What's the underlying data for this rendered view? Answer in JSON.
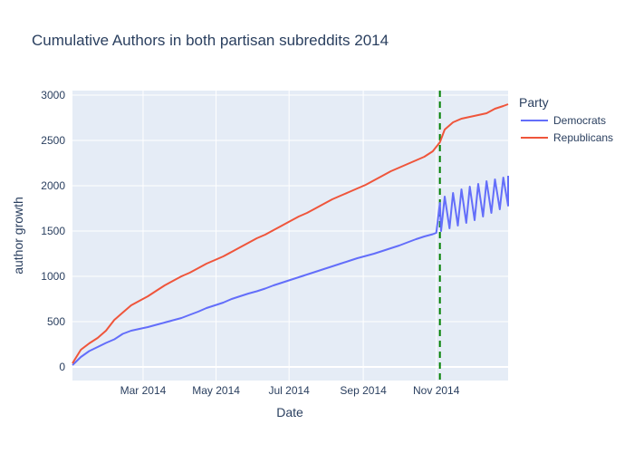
{
  "chart_data": {
    "type": "line",
    "title": "Cumulative Authors in both partisan subreddits 2014",
    "xlabel": "Date",
    "ylabel": "author growth",
    "xlim": [
      "2014-01-01",
      "2014-12-31"
    ],
    "ylim": [
      -150,
      3050
    ],
    "x_ticks": [
      {
        "date": "2014-03-01",
        "label": "Mar 2014"
      },
      {
        "date": "2014-05-01",
        "label": "May 2014"
      },
      {
        "date": "2014-07-01",
        "label": "Jul 2014"
      },
      {
        "date": "2014-09-01",
        "label": "Sep 2014"
      },
      {
        "date": "2014-11-01",
        "label": "Nov 2014"
      }
    ],
    "y_ticks": [
      0,
      500,
      1000,
      1500,
      2000,
      2500,
      3000
    ],
    "grid": true,
    "legend": {
      "title": "Party",
      "placement": "top-right"
    },
    "vline": {
      "x": "2014-11-04",
      "color": "#008000",
      "style": "dashed"
    },
    "series": [
      {
        "name": "Democrats",
        "color": "#636efa",
        "points": [
          [
            "2014-01-01",
            20
          ],
          [
            "2014-01-08",
            110
          ],
          [
            "2014-01-15",
            175
          ],
          [
            "2014-01-22",
            220
          ],
          [
            "2014-01-29",
            265
          ],
          [
            "2014-02-05",
            305
          ],
          [
            "2014-02-12",
            365
          ],
          [
            "2014-02-19",
            400
          ],
          [
            "2014-02-26",
            420
          ],
          [
            "2014-03-05",
            440
          ],
          [
            "2014-03-12",
            465
          ],
          [
            "2014-03-19",
            490
          ],
          [
            "2014-03-26",
            515
          ],
          [
            "2014-04-02",
            540
          ],
          [
            "2014-04-09",
            575
          ],
          [
            "2014-04-16",
            610
          ],
          [
            "2014-04-23",
            650
          ],
          [
            "2014-04-30",
            680
          ],
          [
            "2014-05-07",
            710
          ],
          [
            "2014-05-14",
            750
          ],
          [
            "2014-05-21",
            780
          ],
          [
            "2014-05-28",
            810
          ],
          [
            "2014-06-04",
            835
          ],
          [
            "2014-06-11",
            865
          ],
          [
            "2014-06-18",
            900
          ],
          [
            "2014-06-25",
            930
          ],
          [
            "2014-07-02",
            960
          ],
          [
            "2014-07-09",
            990
          ],
          [
            "2014-07-16",
            1020
          ],
          [
            "2014-07-23",
            1050
          ],
          [
            "2014-07-30",
            1080
          ],
          [
            "2014-08-06",
            1110
          ],
          [
            "2014-08-13",
            1140
          ],
          [
            "2014-08-20",
            1170
          ],
          [
            "2014-08-27",
            1200
          ],
          [
            "2014-09-03",
            1225
          ],
          [
            "2014-09-10",
            1250
          ],
          [
            "2014-09-17",
            1280
          ],
          [
            "2014-09-24",
            1310
          ],
          [
            "2014-10-01",
            1340
          ],
          [
            "2014-10-08",
            1375
          ],
          [
            "2014-10-15",
            1410
          ],
          [
            "2014-10-22",
            1440
          ],
          [
            "2014-10-29",
            1465
          ],
          [
            "2014-11-01",
            1480
          ],
          [
            "2014-11-05",
            1500
          ],
          [
            "2014-11-12",
            1530
          ],
          [
            "2014-11-19",
            1560
          ],
          [
            "2014-11-26",
            1590
          ],
          [
            "2014-12-03",
            1620
          ],
          [
            "2014-12-10",
            1660
          ],
          [
            "2014-12-17",
            1700
          ],
          [
            "2014-12-24",
            1740
          ],
          [
            "2014-12-31",
            1780
          ],
          [
            "2014-11-04",
            1810
          ],
          [
            "2014-11-08",
            1880
          ],
          [
            "2014-11-15",
            1920
          ],
          [
            "2014-11-22",
            1960
          ],
          [
            "2014-11-29",
            1990
          ],
          [
            "2014-12-06",
            2020
          ],
          [
            "2014-12-13",
            2050
          ],
          [
            "2014-12-20",
            2070
          ],
          [
            "2014-12-27",
            2090
          ],
          [
            "2014-12-31",
            2110
          ]
        ]
      },
      {
        "name": "Republicans",
        "color": "#ef553b",
        "points": [
          [
            "2014-01-01",
            40
          ],
          [
            "2014-01-08",
            190
          ],
          [
            "2014-01-15",
            260
          ],
          [
            "2014-01-22",
            320
          ],
          [
            "2014-01-29",
            400
          ],
          [
            "2014-02-05",
            520
          ],
          [
            "2014-02-12",
            600
          ],
          [
            "2014-02-19",
            680
          ],
          [
            "2014-02-26",
            730
          ],
          [
            "2014-03-05",
            780
          ],
          [
            "2014-03-12",
            840
          ],
          [
            "2014-03-19",
            900
          ],
          [
            "2014-03-26",
            950
          ],
          [
            "2014-04-02",
            1000
          ],
          [
            "2014-04-09",
            1040
          ],
          [
            "2014-04-16",
            1090
          ],
          [
            "2014-04-23",
            1140
          ],
          [
            "2014-04-30",
            1180
          ],
          [
            "2014-05-07",
            1220
          ],
          [
            "2014-05-14",
            1270
          ],
          [
            "2014-05-21",
            1320
          ],
          [
            "2014-05-28",
            1370
          ],
          [
            "2014-06-04",
            1420
          ],
          [
            "2014-06-11",
            1460
          ],
          [
            "2014-06-18",
            1510
          ],
          [
            "2014-06-25",
            1560
          ],
          [
            "2014-07-02",
            1610
          ],
          [
            "2014-07-09",
            1660
          ],
          [
            "2014-07-16",
            1700
          ],
          [
            "2014-07-23",
            1750
          ],
          [
            "2014-07-30",
            1800
          ],
          [
            "2014-08-06",
            1850
          ],
          [
            "2014-08-13",
            1890
          ],
          [
            "2014-08-20",
            1930
          ],
          [
            "2014-08-27",
            1970
          ],
          [
            "2014-09-03",
            2010
          ],
          [
            "2014-09-10",
            2060
          ],
          [
            "2014-09-17",
            2110
          ],
          [
            "2014-09-24",
            2160
          ],
          [
            "2014-10-01",
            2200
          ],
          [
            "2014-10-08",
            2240
          ],
          [
            "2014-10-15",
            2280
          ],
          [
            "2014-10-22",
            2320
          ],
          [
            "2014-10-29",
            2380
          ],
          [
            "2014-11-04",
            2480
          ],
          [
            "2014-11-08",
            2620
          ],
          [
            "2014-11-15",
            2700
          ],
          [
            "2014-11-22",
            2740
          ],
          [
            "2014-11-29",
            2760
          ],
          [
            "2014-12-06",
            2780
          ],
          [
            "2014-12-13",
            2800
          ],
          [
            "2014-12-20",
            2850
          ],
          [
            "2014-12-27",
            2880
          ],
          [
            "2014-12-31",
            2900
          ]
        ]
      }
    ]
  }
}
